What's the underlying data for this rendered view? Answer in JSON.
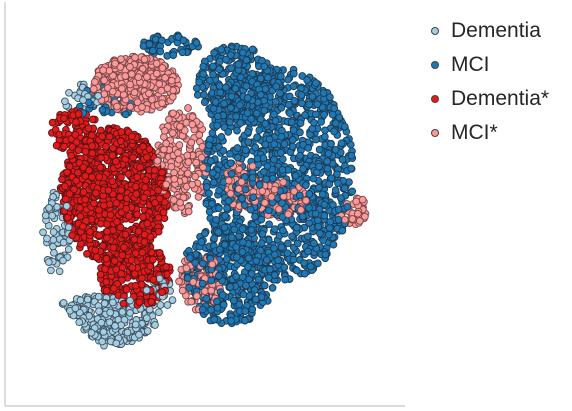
{
  "chart_data": {
    "type": "scatter",
    "title": "",
    "xlabel": "",
    "ylabel": "",
    "xlim": [
      0,
      100
    ],
    "ylim": [
      0,
      100
    ],
    "grid": false,
    "legend_placement": "top-right outside",
    "ticks_visible": false,
    "series": [
      {
        "name": "Dementia",
        "color": "#a6cee3",
        "edge_color": "#3d5260",
        "regions": [
          {
            "cx": 20,
            "cy": 17,
            "rx": 16,
            "ry": 7,
            "n": 260
          },
          {
            "cx": 8,
            "cy": 42,
            "rx": 4,
            "ry": 12,
            "n": 70
          },
          {
            "cx": 14,
            "cy": 80,
            "rx": 6,
            "ry": 4,
            "n": 25
          },
          {
            "cx": 36,
            "cy": 24,
            "rx": 5,
            "ry": 5,
            "n": 25
          }
        ]
      },
      {
        "name": "MCI",
        "color": "#1f78b4",
        "edge_color": "#1c3a52",
        "regions": [
          {
            "cx": 70,
            "cy": 58,
            "rx": 21,
            "ry": 30,
            "n": 1100
          },
          {
            "cx": 56,
            "cy": 30,
            "rx": 13,
            "ry": 14,
            "n": 380
          },
          {
            "cx": 58,
            "cy": 83,
            "rx": 11,
            "ry": 11,
            "n": 260
          },
          {
            "cx": 40,
            "cy": 94,
            "rx": 8,
            "ry": 3,
            "n": 45
          },
          {
            "cx": 22,
            "cy": 78,
            "rx": 8,
            "ry": 5,
            "n": 40
          }
        ]
      },
      {
        "name": "Dementia*",
        "color": "#e31a1c",
        "edge_color": "#5a1315",
        "regions": [
          {
            "cx": 24,
            "cy": 52,
            "rx": 15,
            "ry": 19,
            "n": 980
          },
          {
            "cx": 30,
            "cy": 30,
            "rx": 10,
            "ry": 9,
            "n": 260
          },
          {
            "cx": 13,
            "cy": 70,
            "rx": 7,
            "ry": 6,
            "n": 80
          }
        ]
      },
      {
        "name": "MCI*",
        "color": "#fb9a99",
        "edge_color": "#7a4547",
        "regions": [
          {
            "cx": 30,
            "cy": 83,
            "rx": 12,
            "ry": 8,
            "n": 420
          },
          {
            "cx": 43,
            "cy": 62,
            "rx": 7,
            "ry": 15,
            "n": 220
          },
          {
            "cx": 48,
            "cy": 28,
            "rx": 6,
            "ry": 8,
            "n": 120
          },
          {
            "cx": 70,
            "cy": 51,
            "rx": 8,
            "ry": 5,
            "n": 110
          },
          {
            "cx": 91,
            "cy": 48,
            "rx": 4,
            "ry": 4,
            "n": 35
          },
          {
            "cx": 60,
            "cy": 55,
            "rx": 5,
            "ry": 7,
            "n": 80
          }
        ]
      }
    ]
  },
  "legend": {
    "items": [
      {
        "label": "Dementia",
        "color": "#a6cee3"
      },
      {
        "label": "MCI",
        "color": "#1f78b4"
      },
      {
        "label": "Dementia*",
        "color": "#e31a1c"
      },
      {
        "label": "MCI*",
        "color": "#fb9a99"
      }
    ]
  }
}
